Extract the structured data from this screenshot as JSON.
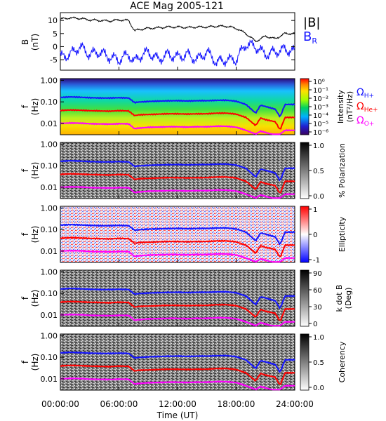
{
  "title": "ACE Mag 2005-121",
  "xlabel": "Time (UT)",
  "x_ticks": [
    "00:00:00",
    "06:00:00",
    "12:00:00",
    "18:00:00",
    "24:00:00"
  ],
  "x_tick_hours": [
    0,
    6,
    12,
    18,
    24
  ],
  "xlim_hours": [
    0,
    24
  ],
  "colors": {
    "black_trace": "#000000",
    "blue_trace": "#1515ff",
    "red_trace": "#ff0000",
    "magenta_trace": "#ff00ff"
  },
  "chart_data": [
    {
      "type": "line",
      "panel": "field",
      "ylabel_line1": "B",
      "ylabel_line2": "(nT)",
      "ylim": [
        -9,
        13
      ],
      "y_ticks": [
        "10",
        "5",
        "0",
        "-5"
      ],
      "y_tick_values": [
        10,
        5,
        0,
        -5
      ],
      "legend": [
        {
          "label": "|B|",
          "color": "#000000"
        },
        {
          "label": "B",
          "sub": "R",
          "color": "#1515ff"
        }
      ],
      "x_hours": [
        0,
        1,
        2,
        3,
        4,
        5,
        6,
        7,
        7.6,
        8,
        9,
        10,
        11,
        12,
        13,
        14,
        15,
        16,
        17,
        18,
        19,
        20,
        21,
        22,
        23,
        24
      ],
      "series": [
        {
          "name": "|B|",
          "color": "#000000",
          "values": [
            10.5,
            11,
            10.8,
            10.2,
            10,
            9.8,
            10.2,
            10,
            6,
            6.5,
            7,
            7.2,
            7.5,
            7.5,
            7.3,
            7.5,
            7.5,
            7.8,
            7.8,
            7,
            5,
            2,
            4,
            3,
            5,
            5
          ]
        },
        {
          "name": "B_R",
          "color": "#1515ff",
          "values": [
            -4,
            -3,
            0,
            -3,
            -2,
            -4,
            -5,
            -3,
            -6,
            -4,
            -2,
            -5,
            -3,
            -4,
            -3,
            -5,
            -2,
            -6,
            -5,
            -5,
            1,
            0,
            -3,
            -2,
            -1,
            -2
          ]
        }
      ]
    },
    {
      "type": "heatmap",
      "panel": "intensity",
      "ylabel_line1": "f",
      "ylabel_line2": "(Hz)",
      "y_scale": "log",
      "ylim": [
        0.003,
        1.2
      ],
      "colorbar_label": "Intensity (nT^2/Hz)",
      "colorbar_label_line1": "Intensity",
      "colorbar_label_line2": "(nT²/Hz)",
      "colorbar_ticks": [
        "10⁰",
        "10⁻¹",
        "10⁻²",
        "10⁻³",
        "10⁻⁴",
        "10⁻⁵",
        "10⁻⁶"
      ],
      "colorscale": "rainbow",
      "legend": [
        {
          "label": "Ω",
          "sub": "H+",
          "color": "#1515ff"
        },
        {
          "label": "Ω",
          "sub": "He+",
          "color": "#ff0000"
        },
        {
          "label": "Ω",
          "sub": "O+",
          "color": "#ff00ff"
        }
      ]
    },
    {
      "type": "heatmap",
      "panel": "polarization",
      "ylabel_line1": "f",
      "ylabel_line2": "(Hz)",
      "y_scale": "log",
      "colorbar_label": "% Polarization",
      "colorbar_ticks": [
        "1.0",
        "0.5",
        "0.0"
      ],
      "colorscale": "gray"
    },
    {
      "type": "heatmap",
      "panel": "ellipticity",
      "ylabel_line1": "f",
      "ylabel_line2": "(Hz)",
      "y_scale": "log",
      "colorbar_label": "Ellipticity",
      "colorbar_ticks": [
        "1",
        "0",
        "-1"
      ],
      "colorscale": "blue-white-red"
    },
    {
      "type": "heatmap",
      "panel": "k_dot_b",
      "ylabel_line1": "f",
      "ylabel_line2": "(Hz)",
      "y_scale": "log",
      "colorbar_label_line1": "k dot B",
      "colorbar_label_line2": "(Deg)",
      "colorbar_ticks": [
        "90",
        "60",
        "30",
        "0"
      ],
      "colorscale": "gray"
    },
    {
      "type": "heatmap",
      "panel": "coherency",
      "ylabel_line1": "f",
      "ylabel_line2": "(Hz)",
      "y_scale": "log",
      "colorbar_label": "Coherency",
      "colorbar_ticks": [
        "1.0",
        "0.5",
        "0.0"
      ],
      "colorscale": "gray"
    }
  ],
  "freq_ticks": [
    "1.00",
    "0.10",
    "0.01"
  ],
  "freq_tick_values": [
    1.0,
    0.1,
    0.01
  ],
  "gyrofrequency_lines": {
    "x_hours": [
      0,
      1,
      2,
      3,
      4,
      5,
      6,
      7,
      7.6,
      8,
      9,
      10,
      11,
      12,
      13,
      14,
      15,
      16,
      17,
      18,
      19,
      20,
      20.5,
      21,
      22,
      22.5,
      23,
      24
    ],
    "series": [
      {
        "name": "ΩH+",
        "color": "#1515ff",
        "values_hz": [
          0.16,
          0.17,
          0.165,
          0.155,
          0.152,
          0.15,
          0.155,
          0.152,
          0.092,
          0.098,
          0.105,
          0.108,
          0.112,
          0.113,
          0.11,
          0.113,
          0.113,
          0.118,
          0.119,
          0.107,
          0.076,
          0.03,
          0.07,
          0.061,
          0.046,
          0.02,
          0.076,
          0.076
        ]
      },
      {
        "name": "ΩHe+",
        "color": "#ff0000",
        "values_hz": [
          0.04,
          0.042,
          0.041,
          0.039,
          0.038,
          0.037,
          0.039,
          0.038,
          0.023,
          0.025,
          0.026,
          0.027,
          0.028,
          0.028,
          0.027,
          0.028,
          0.028,
          0.03,
          0.03,
          0.027,
          0.019,
          0.008,
          0.018,
          0.015,
          0.012,
          0.005,
          0.019,
          0.019
        ]
      },
      {
        "name": "ΩO+",
        "color": "#ff00ff",
        "values_hz": [
          0.01,
          0.0105,
          0.0103,
          0.0097,
          0.0095,
          0.0093,
          0.0097,
          0.0095,
          0.0057,
          0.0061,
          0.0066,
          0.0068,
          0.007,
          0.007,
          0.0068,
          0.007,
          0.007,
          0.0074,
          0.0074,
          0.0067,
          0.0048,
          0.0032,
          0.0044,
          0.0038,
          0.0029,
          0.0032,
          0.0048,
          0.0048
        ]
      }
    ]
  }
}
